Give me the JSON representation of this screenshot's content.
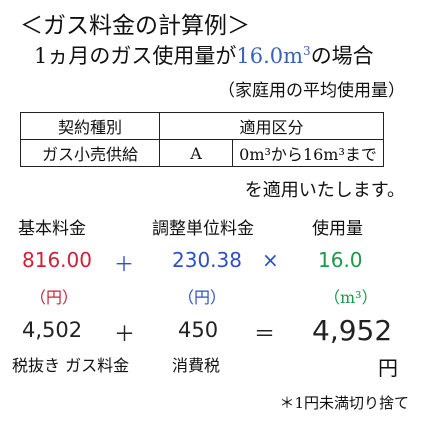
{
  "title": "＜ガス料金の計算例＞",
  "subtitle": {
    "prefix": "1ヵ月のガス使用量が",
    "amount": "16.0m",
    "sup": "3",
    "suffix": "の場合"
  },
  "note_household": "（家庭用の平均使用量）",
  "plan_table": {
    "header_contract": "契約種別",
    "header_section": "適用区分",
    "contract": "ガス小売供給",
    "class": "A",
    "range": "0m³から16m³まで"
  },
  "applies": "を適用いたします。",
  "labels": {
    "basic": "基本料金",
    "unit_adjust": "調整単位料金",
    "usage": "使用量"
  },
  "calc": {
    "basic_value": "816.00",
    "plus": "＋",
    "unit_value": "230.38",
    "times": "×",
    "usage_value": "16.0",
    "unit_yen_a": "（円）",
    "unit_yen_b": "（円）",
    "unit_m3": "（m³）",
    "taxfree_value": "4,502",
    "plus2": "＋",
    "tax_value": "450",
    "equals": "＝",
    "total_value": "4,952",
    "taxfree_label": "税抜き ガス料金",
    "tax_label": "消費税",
    "yen": "円"
  },
  "footnote": "＊1円未満切り捨て",
  "colors": {
    "basic": "#d11f3a",
    "unit_adjust": "#2d4fc9",
    "usage": "#1a9a4a",
    "accent": "#3a63b8"
  }
}
